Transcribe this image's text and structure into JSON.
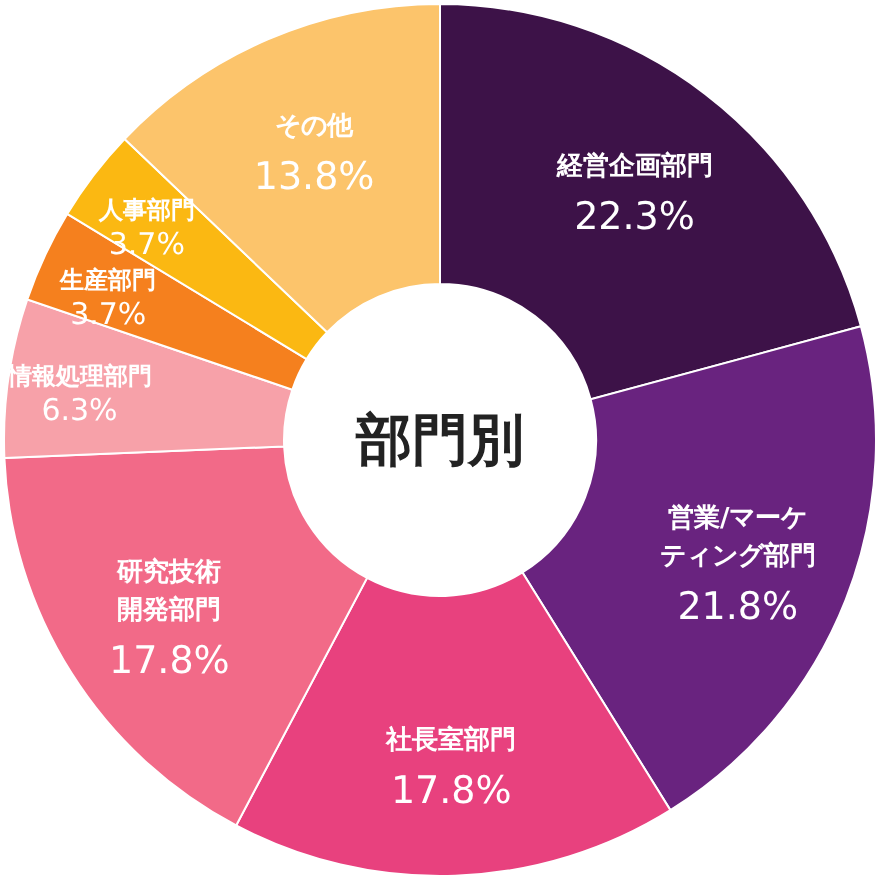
{
  "chart_data": {
    "type": "donut",
    "title": "部門別",
    "categories": [
      "経営企画部門",
      "営業/マーケティング部門",
      "社長室部門",
      "研究技術開発部門",
      "情報処理部門",
      "生産部門",
      "人事部門",
      "その他"
    ],
    "values": [
      22.3,
      21.8,
      17.8,
      17.8,
      6.3,
      3.7,
      3.7,
      13.8
    ],
    "value_labels": [
      "22.3%",
      "21.8%",
      "17.8%",
      "17.8%",
      "6.3%",
      "3.7%",
      "3.7%",
      "13.8%"
    ],
    "colors": [
      "#3d1248",
      "#69237f",
      "#e8417e",
      "#f26a88",
      "#f7a1a9",
      "#f5801e",
      "#fbb812",
      "#fcc46b"
    ]
  }
}
